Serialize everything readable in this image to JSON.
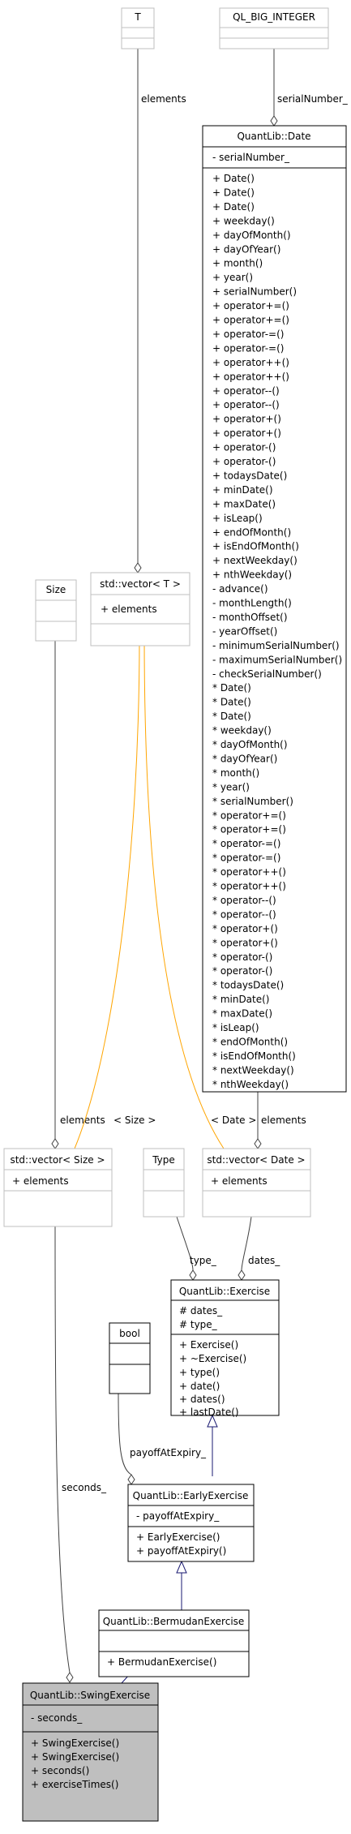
{
  "colors": {
    "class_border": "#000000",
    "external_border": "#bfbfbf",
    "highlight_fill": "#bfbfbf",
    "inheritance_edge": "#191970",
    "template_edge": "#ffa500",
    "usage_edge": "#404040"
  },
  "classes": {
    "T": {
      "title": "T"
    },
    "ql_big_integer": {
      "title": "QL_BIG_INTEGER"
    },
    "date": {
      "title": "QuantLib::Date",
      "attributes": [
        "- serialNumber_"
      ],
      "methods": [
        "+ Date()",
        "+ Date()",
        "+ Date()",
        "+ weekday()",
        "+ dayOfMonth()",
        "+ dayOfYear()",
        "+ month()",
        "+ year()",
        "+ serialNumber()",
        "+ operator+=()",
        "+ operator+=()",
        "+ operator-=()",
        "+ operator-=()",
        "+ operator++()",
        "+ operator++()",
        "+ operator--()",
        "+ operator--()",
        "+ operator+()",
        "+ operator+()",
        "+ operator-()",
        "+ operator-()",
        "+ todaysDate()",
        "+ minDate()",
        "+ maxDate()",
        "+ isLeap()",
        "+ endOfMonth()",
        "+ isEndOfMonth()",
        "+ nextWeekday()",
        "+ nthWeekday()",
        "- advance()",
        "- monthLength()",
        "- monthOffset()",
        "- yearOffset()",
        "- minimumSerialNumber()",
        "- maximumSerialNumber()",
        "- checkSerialNumber()",
        "* Date()",
        "* Date()",
        "* Date()",
        "* weekday()",
        "* dayOfMonth()",
        "* dayOfYear()",
        "* month()",
        "* year()",
        "* serialNumber()",
        "* operator+=()",
        "* operator+=()",
        "* operator-=()",
        "* operator-=()",
        "* operator++()",
        "* operator++()",
        "* operator--()",
        "* operator--()",
        "* operator+()",
        "* operator+()",
        "* operator-()",
        "* operator-()",
        "* todaysDate()",
        "* minDate()",
        "* maxDate()",
        "* isLeap()",
        "* endOfMonth()",
        "* isEndOfMonth()",
        "* nextWeekday()",
        "* nthWeekday()"
      ]
    },
    "size": {
      "title": "Size"
    },
    "vector_T": {
      "title": "std::vector< T >",
      "attributes": [
        "+ elements"
      ]
    },
    "vector_size": {
      "title": "std::vector< Size >",
      "attributes": [
        "+ elements"
      ]
    },
    "type": {
      "title": "Type"
    },
    "vector_date": {
      "title": "std::vector< Date >",
      "attributes": [
        "+ elements"
      ]
    },
    "exercise": {
      "title": "QuantLib::Exercise",
      "attributes": [
        "# dates_",
        "# type_"
      ],
      "methods": [
        "+ Exercise()",
        "+ ~Exercise()",
        "+ type()",
        "+ date()",
        "+ dates()",
        "+ lastDate()"
      ]
    },
    "bool": {
      "title": "bool"
    },
    "early": {
      "title": "QuantLib::EarlyExercise",
      "attributes": [
        "- payoffAtExpiry_"
      ],
      "methods": [
        "+ EarlyExercise()",
        "+ payoffAtExpiry()"
      ]
    },
    "bermudan": {
      "title": "QuantLib::BermudanExercise",
      "methods": [
        "+ BermudanExercise()"
      ]
    },
    "swing": {
      "title": "QuantLib::SwingExercise",
      "attributes": [
        "- seconds_"
      ],
      "methods": [
        "+ SwingExercise()",
        "+ SwingExercise()",
        "+ seconds()",
        "+ exerciseTimes()"
      ]
    }
  },
  "edge_labels": {
    "elements_T": "elements",
    "serialNumber": "serialNumber_",
    "elements_size": "elements",
    "size_tmpl": "< Size >",
    "date_tmpl": "< Date >",
    "elements_date": "elements",
    "type_": "type_",
    "dates_": "dates_",
    "payoffAtExpiry": "payoffAtExpiry_",
    "seconds": "seconds_"
  }
}
